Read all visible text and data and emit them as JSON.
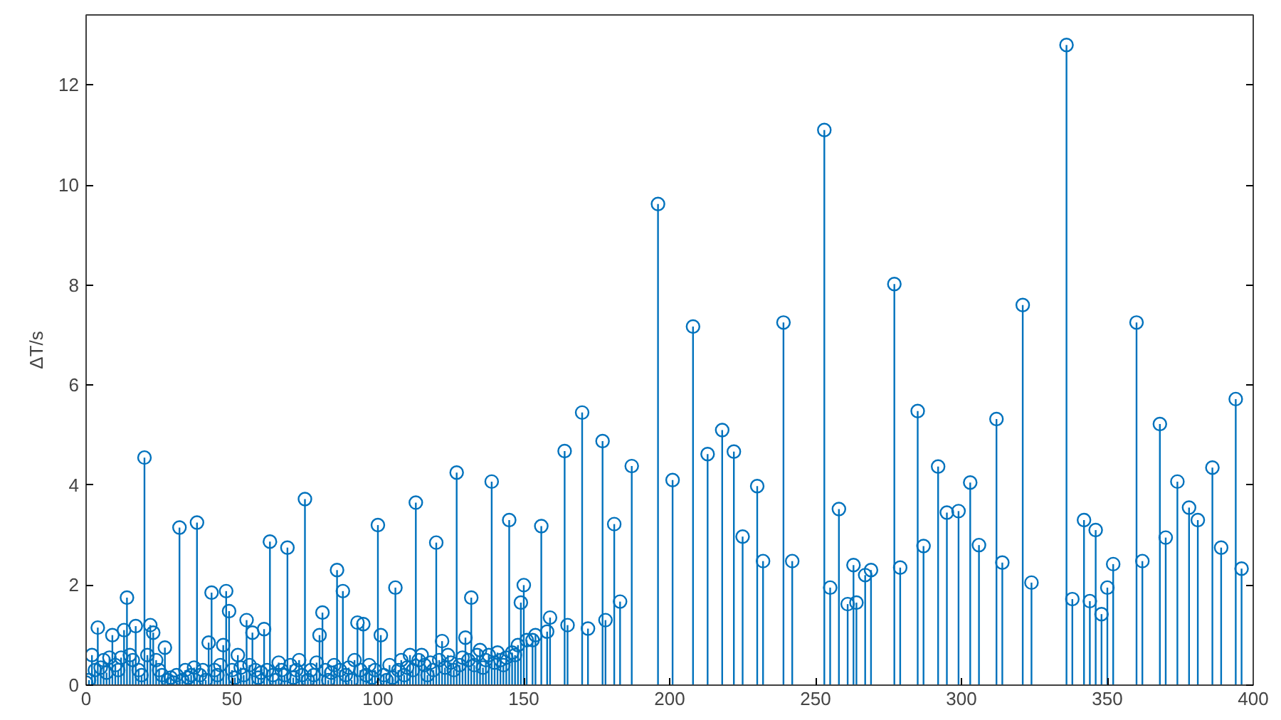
{
  "chart_data": {
    "type": "lollipop",
    "ylabel": "ΔT/s",
    "marker": "circle",
    "xlim": [
      0,
      400
    ],
    "ylim": [
      0,
      13.4
    ],
    "xticks": [
      0,
      50,
      100,
      150,
      200,
      250,
      300,
      350,
      400
    ],
    "yticks": [
      0,
      2,
      4,
      6,
      8,
      10,
      12
    ],
    "series": [
      {
        "color": "#0072bd",
        "x": [
          0,
          1,
          2,
          3,
          4,
          5,
          6,
          7,
          8,
          9,
          10,
          11,
          12,
          13,
          14,
          15,
          16,
          17,
          18,
          19,
          20,
          21,
          22,
          23,
          24,
          25,
          26,
          27,
          28,
          29,
          30,
          31,
          32,
          33,
          34,
          35,
          36,
          37,
          38,
          39,
          40,
          41,
          42,
          43,
          44,
          45,
          46,
          47,
          48,
          49,
          50,
          51,
          52,
          53,
          54,
          55,
          56,
          57,
          58,
          59,
          60,
          61,
          62,
          63,
          64,
          65,
          66,
          67,
          68,
          69,
          70,
          71,
          72,
          73,
          74,
          75,
          76,
          77,
          78,
          79,
          80,
          81,
          82,
          83,
          84,
          85,
          86,
          87,
          88,
          89,
          90,
          91,
          92,
          93,
          94,
          95,
          96,
          97,
          98,
          99,
          100,
          101,
          102,
          103,
          104,
          105,
          106,
          107,
          108,
          109,
          110,
          111,
          112,
          113,
          114,
          115,
          116,
          117,
          118,
          119,
          120,
          121,
          122,
          123,
          124,
          125,
          126,
          127,
          128,
          129,
          130,
          131,
          132,
          133,
          134,
          135,
          136,
          137,
          138,
          139,
          140,
          141,
          142,
          143,
          144,
          145,
          146,
          147,
          148,
          149,
          150,
          151,
          153,
          154,
          156,
          158,
          159,
          164,
          165,
          170,
          172,
          177,
          178,
          181,
          183,
          187,
          196,
          201,
          208,
          213,
          218,
          222,
          225,
          230,
          232,
          239,
          242,
          253,
          255,
          258,
          261,
          263,
          264,
          267,
          269,
          277,
          279,
          285,
          287,
          292,
          295,
          299,
          303,
          306,
          312,
          314,
          321,
          324,
          336,
          338,
          342,
          344,
          346,
          348,
          350,
          352,
          360,
          362,
          368,
          370,
          374,
          378,
          381,
          386,
          389,
          394,
          396
        ],
        "values": [
          0.05,
          0.1,
          0.6,
          0.3,
          1.15,
          0.35,
          0.5,
          0.25,
          0.55,
          1.0,
          0.4,
          0.3,
          0.55,
          1.1,
          1.75,
          0.6,
          0.5,
          1.18,
          0.3,
          0.2,
          4.55,
          0.6,
          1.2,
          1.05,
          0.5,
          0.3,
          0.2,
          0.75,
          0.1,
          0.15,
          0.05,
          0.2,
          3.15,
          0.1,
          0.3,
          0.15,
          0.2,
          0.35,
          3.25,
          0.2,
          0.3,
          0.1,
          0.85,
          1.85,
          0.3,
          0.2,
          0.4,
          0.8,
          1.88,
          1.48,
          0.3,
          0.15,
          0.6,
          0.35,
          0.2,
          1.3,
          0.4,
          1.05,
          0.3,
          0.15,
          0.25,
          1.12,
          0.3,
          2.87,
          0.2,
          0.1,
          0.45,
          0.3,
          0.2,
          2.75,
          0.4,
          0.15,
          0.3,
          0.5,
          0.2,
          3.72,
          0.1,
          0.3,
          0.2,
          0.45,
          1.0,
          1.45,
          0.3,
          0.1,
          0.25,
          0.4,
          2.3,
          0.3,
          1.88,
          0.2,
          0.35,
          0.1,
          0.5,
          1.25,
          0.3,
          1.22,
          0.2,
          0.4,
          0.15,
          0.3,
          3.2,
          1.0,
          0.2,
          0.1,
          0.4,
          0.15,
          1.95,
          0.3,
          0.5,
          0.2,
          0.35,
          0.6,
          0.3,
          3.65,
          0.5,
          0.6,
          0.4,
          0.2,
          0.45,
          0.3,
          2.85,
          0.5,
          0.88,
          0.35,
          0.6,
          0.45,
          0.3,
          4.25,
          0.4,
          0.55,
          0.95,
          0.5,
          1.75,
          0.4,
          0.6,
          0.7,
          0.35,
          0.5,
          0.6,
          4.07,
          0.45,
          0.65,
          0.5,
          0.4,
          0.55,
          3.3,
          0.65,
          0.6,
          0.8,
          1.65,
          2.0,
          0.9,
          0.9,
          1.0,
          3.18,
          1.07,
          1.35,
          4.68,
          1.2,
          5.45,
          1.13,
          4.88,
          1.3,
          3.22,
          1.67,
          4.38,
          9.62,
          4.1,
          7.17,
          4.62,
          5.1,
          4.67,
          2.97,
          3.98,
          2.48,
          7.25,
          2.48,
          11.1,
          1.95,
          3.52,
          1.62,
          2.4,
          1.65,
          2.2,
          2.3,
          8.02,
          2.35,
          5.48,
          2.78,
          4.37,
          3.45,
          3.48,
          4.05,
          2.8,
          5.32,
          2.45,
          7.6,
          2.05,
          12.8,
          1.72,
          3.3,
          1.68,
          3.1,
          1.42,
          1.95,
          2.42,
          7.25,
          2.48,
          5.22,
          2.95,
          4.07,
          3.55,
          3.3,
          4.35,
          2.75,
          5.72,
          2.33
        ]
      }
    ]
  }
}
